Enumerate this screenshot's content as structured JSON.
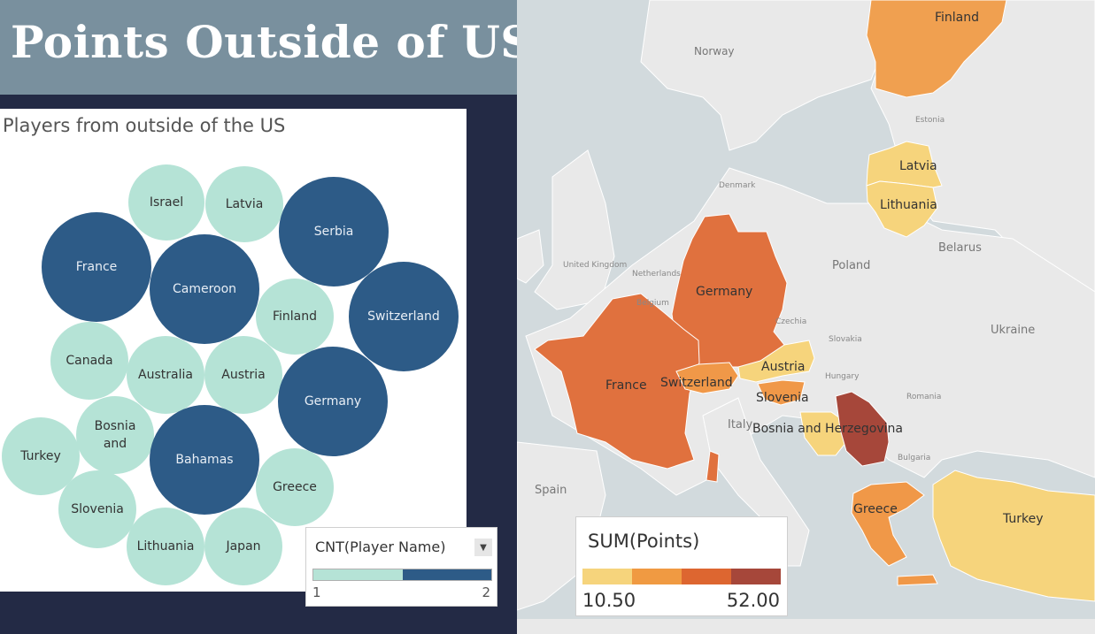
{
  "title": "Points Outside of USA",
  "bubble_chart": {
    "title": "Players from outside of the US",
    "bubbles": [
      {
        "label": "Israel",
        "count": 1
      },
      {
        "label": "Latvia",
        "count": 1
      },
      {
        "label": "Serbia",
        "count": 2
      },
      {
        "label": "France",
        "count": 2
      },
      {
        "label": "Cameroon",
        "count": 2
      },
      {
        "label": "Finland",
        "count": 1
      },
      {
        "label": "Switzerland",
        "count": 2
      },
      {
        "label": "Canada",
        "count": 1
      },
      {
        "label": "Australia",
        "count": 1
      },
      {
        "label": "Austria",
        "count": 1
      },
      {
        "label": "Germany",
        "count": 2
      },
      {
        "label": "Bosnia and",
        "count": 1
      },
      {
        "label": "Turkey",
        "count": 1
      },
      {
        "label": "Bahamas",
        "count": 2
      },
      {
        "label": "Greece",
        "count": 1
      },
      {
        "label": "Slovenia",
        "count": 1
      },
      {
        "label": "Lithuania",
        "count": 1
      },
      {
        "label": "Japan",
        "count": 1
      }
    ]
  },
  "cnt_legend": {
    "title": "CNT(Player Name)",
    "dropdown_icon": "chevron-down-icon",
    "min_label": "1",
    "max_label": "2",
    "colors": {
      "low": "#b5e3d6",
      "high": "#2d5b87"
    }
  },
  "map": {
    "colored_countries": [
      {
        "name": "Finland",
        "label": "Finland",
        "color": "#f0a050"
      },
      {
        "name": "Latvia",
        "label": "Latvia",
        "color": "#f6d47c"
      },
      {
        "name": "Lithuania",
        "label": "Lithuania",
        "color": "#f6d47c"
      },
      {
        "name": "Germany",
        "label": "Germany",
        "color": "#e0713e"
      },
      {
        "name": "France",
        "label": "France",
        "color": "#e0713e"
      },
      {
        "name": "Switzerland",
        "label": "Switzerland",
        "color": "#f09848"
      },
      {
        "name": "Austria",
        "label": "Austria",
        "color": "#f6d47c"
      },
      {
        "name": "Slovenia",
        "label": "Slovenia",
        "color": "#f09848"
      },
      {
        "name": "Bosnia and Herzegovina",
        "label": "Bosnia and Herzegovina",
        "color": "#f6d47c"
      },
      {
        "name": "Serbia",
        "label": "",
        "color": "#a6473a"
      },
      {
        "name": "Greece",
        "label": "Greece",
        "color": "#f09848"
      },
      {
        "name": "Turkey",
        "label": "Turkey",
        "color": "#f6d47c"
      }
    ],
    "base_labels": [
      "Norway",
      "Estonia",
      "Denmark",
      "United Kingdom",
      "Netherlands",
      "Belgium",
      "Poland",
      "Belarus",
      "Ukraine",
      "Czechia",
      "Slovakia",
      "Hungary",
      "Romania",
      "Italy",
      "Bulgaria",
      "Spain"
    ]
  },
  "sum_legend": {
    "title": "SUM(Points)",
    "min_label": "10.50",
    "max_label": "52.00",
    "colors": [
      "#f6d47c",
      "#f09a42",
      "#dd6630",
      "#a6473a"
    ]
  }
}
